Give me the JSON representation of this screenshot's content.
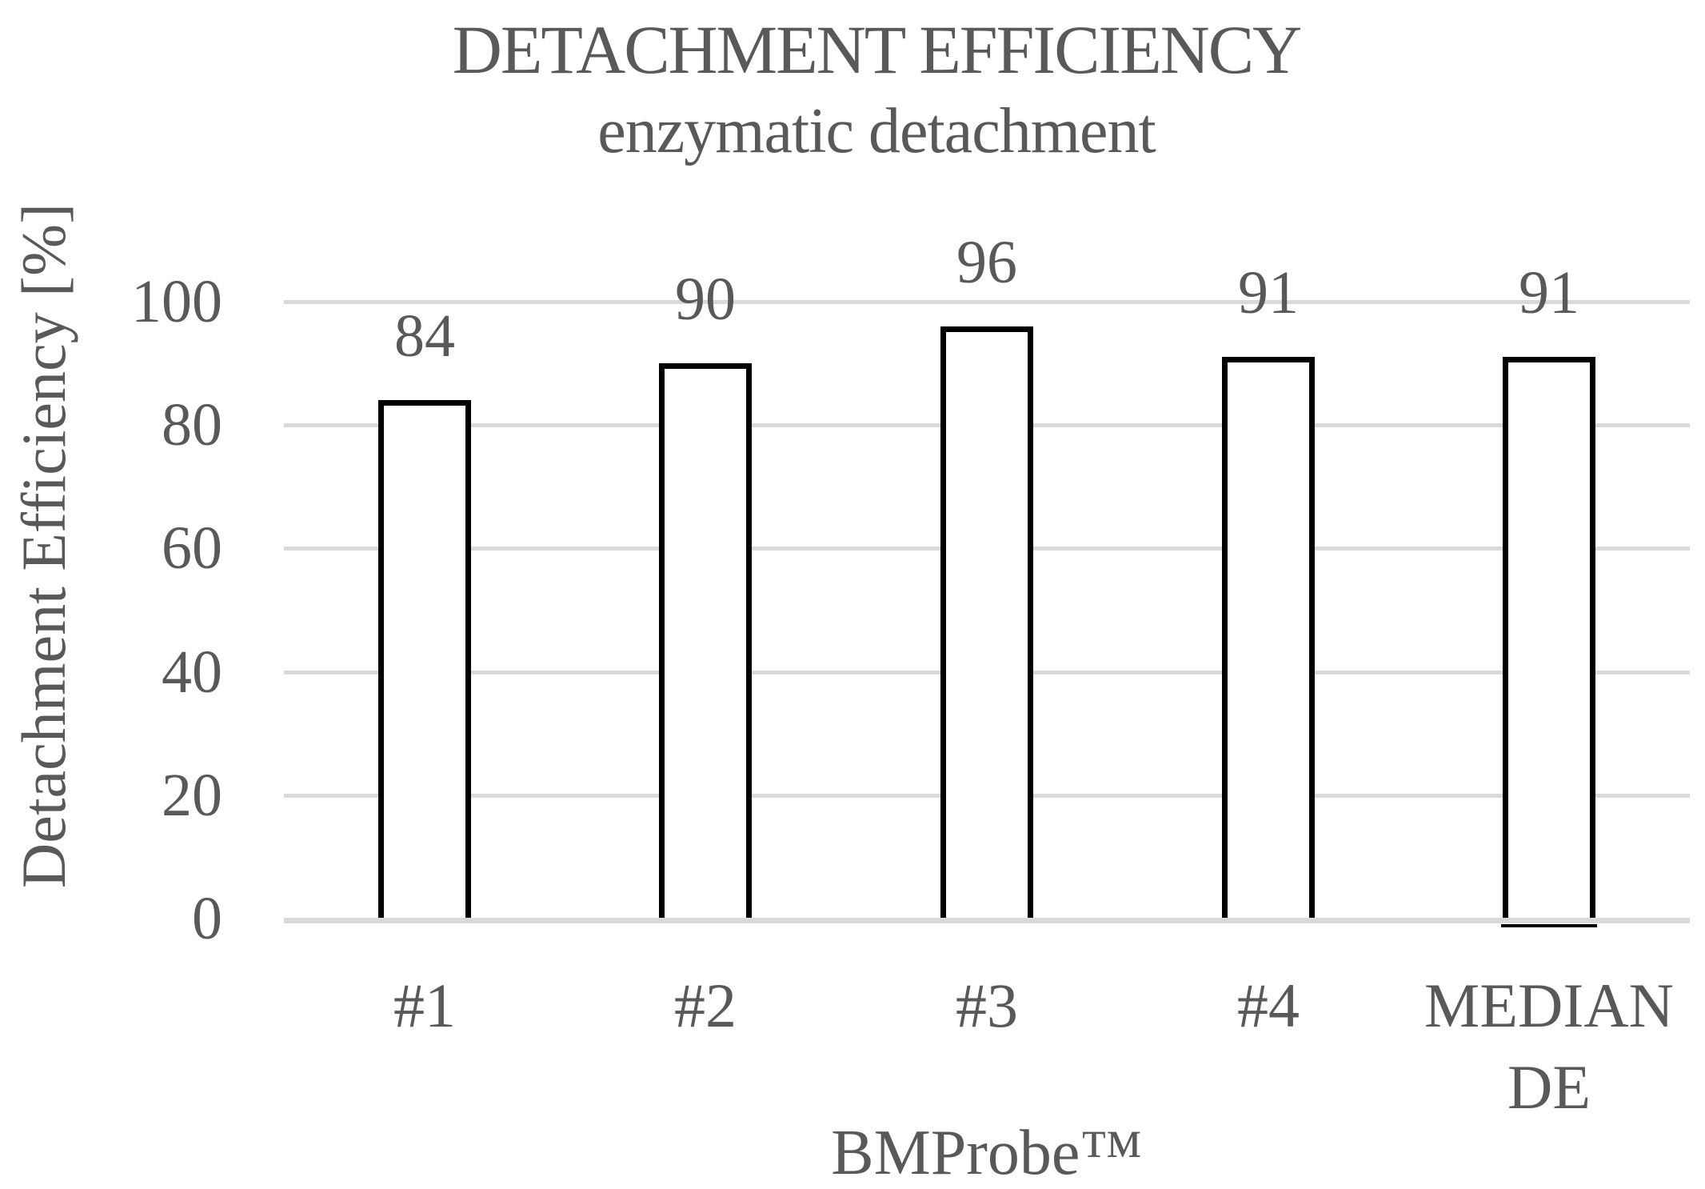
{
  "chart_data": {
    "type": "bar",
    "title": "DETACHMENT EFFICIENCY",
    "subtitle": "enzymatic detachment",
    "xlabel": "BMProbe™",
    "ylabel": "Detachment Efficiency [%]",
    "categories": [
      "#1",
      "#2",
      "#3",
      "#4",
      "MEDIAN DE"
    ],
    "values": [
      84,
      90,
      96,
      91,
      91
    ],
    "data_labels": [
      "84",
      "90",
      "96",
      "91",
      "91"
    ],
    "y_ticks": [
      0,
      20,
      40,
      60,
      80,
      100
    ],
    "ylim": [
      0,
      100
    ],
    "grid": "horizontal gridlines at each y tick",
    "legend_position": "none",
    "bar_style": "white fill with thick black outline",
    "annotations": {
      "median_bar_underline": "short black line under the MEDIAN DE bar below the axis"
    },
    "colors": {
      "text": "#595959",
      "gridline": "#D9D9D9",
      "bar_fill": "#FFFFFF",
      "bar_border": "#000000",
      "background": "#FFFFFF"
    }
  }
}
